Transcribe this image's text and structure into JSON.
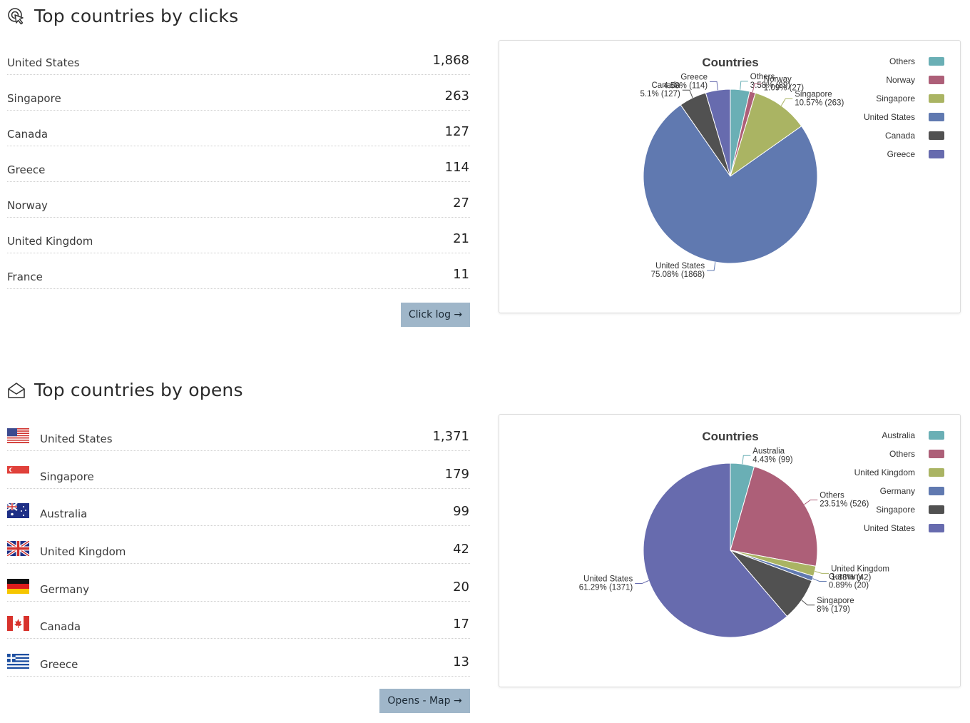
{
  "clicks": {
    "title": "Top countries by clicks",
    "rows": [
      {
        "name": "United States",
        "value": "1,868"
      },
      {
        "name": "Singapore",
        "value": "263"
      },
      {
        "name": "Canada",
        "value": "127"
      },
      {
        "name": "Greece",
        "value": "114"
      },
      {
        "name": "Norway",
        "value": "27"
      },
      {
        "name": "United Kingdom",
        "value": "21"
      },
      {
        "name": "France",
        "value": "11"
      }
    ],
    "button_label": "Click log →"
  },
  "opens": {
    "title": "Top countries by opens",
    "rows": [
      {
        "name": "United States",
        "value": "1,371",
        "flag": "us-flag"
      },
      {
        "name": "Singapore",
        "value": "179",
        "flag": "sg-flag"
      },
      {
        "name": "Australia",
        "value": "99",
        "flag": "au-flag"
      },
      {
        "name": "United Kingdom",
        "value": "42",
        "flag": "gb-flag"
      },
      {
        "name": "Germany",
        "value": "20",
        "flag": "de-flag"
      },
      {
        "name": "Canada",
        "value": "17",
        "flag": "ca-flag"
      },
      {
        "name": "Greece",
        "value": "13",
        "flag": "gr-flag"
      }
    ],
    "button_label": "Opens - Map →"
  },
  "chart_data": [
    {
      "type": "pie",
      "title": "Countries",
      "slices": [
        {
          "name": "Others",
          "value": 89,
          "percent": 3.58,
          "label": "3.58% (89)",
          "color": "#6aafb5"
        },
        {
          "name": "Norway",
          "value": 27,
          "percent": 1.09,
          "label": "1.09% (27)",
          "color": "#ad5f78"
        },
        {
          "name": "Singapore",
          "value": 263,
          "percent": 10.57,
          "label": "10.57% (263)",
          "color": "#aab463"
        },
        {
          "name": "United States",
          "value": 1868,
          "percent": 75.08,
          "label": "75.08% (1868)",
          "color": "#6079b0"
        },
        {
          "name": "Canada",
          "value": 127,
          "percent": 5.1,
          "label": "5.1% (127)",
          "color": "#515151"
        },
        {
          "name": "Greece",
          "value": 114,
          "percent": 4.58,
          "label": "4.58% (114)",
          "color": "#676bae"
        }
      ],
      "legend": [
        "Others",
        "Norway",
        "Singapore",
        "United States",
        "Canada",
        "Greece"
      ],
      "legend_position": "top-right"
    },
    {
      "type": "pie",
      "title": "Countries",
      "slices": [
        {
          "name": "Australia",
          "value": 99,
          "percent": 4.43,
          "label": "4.43% (99)",
          "color": "#6aafb5"
        },
        {
          "name": "Others",
          "value": 526,
          "percent": 23.51,
          "label": "23.51% (526)",
          "color": "#ad5f78"
        },
        {
          "name": "United Kingdom",
          "value": 42,
          "percent": 1.88,
          "label": "1.88% (42)",
          "color": "#aab463"
        },
        {
          "name": "Germany",
          "value": 20,
          "percent": 0.89,
          "label": "0.89% (20)",
          "color": "#6079b0"
        },
        {
          "name": "Singapore",
          "value": 179,
          "percent": 8,
          "label": "8% (179)",
          "color": "#515151"
        },
        {
          "name": "United States",
          "value": 1371,
          "percent": 61.29,
          "label": "61.29% (1371)",
          "color": "#676bae"
        }
      ],
      "legend": [
        "Australia",
        "Others",
        "United Kingdom",
        "Germany",
        "Singapore",
        "United States"
      ],
      "legend_position": "top-right"
    }
  ]
}
